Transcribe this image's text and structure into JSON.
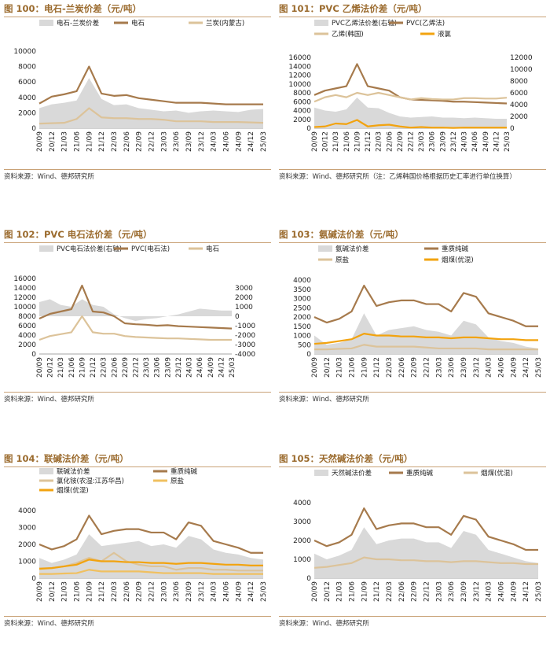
{
  "colors": {
    "gray": "#d9d9d9",
    "brown": "#a67a4c",
    "tan": "#dcc39a",
    "orange": "#f2a30f",
    "title": "#9b6b2e"
  },
  "xticks": [
    "20/09",
    "20/12",
    "21/03",
    "21/06",
    "21/09",
    "21/12",
    "22/03",
    "22/06",
    "22/09",
    "22/12",
    "23/03",
    "23/06",
    "23/09",
    "23/12",
    "24/03",
    "24/06",
    "24/09",
    "24/12",
    "25/03"
  ],
  "panels": [
    {
      "id": "p100",
      "title": "图 100：电石-兰炭价差（元/吨）",
      "source": "资料来源：Wind、德邦研究所",
      "chart_data": {
        "type": "area+line",
        "title": "电石-兰炭价差（元/吨）",
        "ylim": [
          0,
          10000
        ],
        "yticks": [
          "0",
          "2000",
          "4000",
          "6000",
          "8000",
          "10000"
        ],
        "series": [
          {
            "name": "电石-兰炭价差",
            "kind": "area",
            "axis": "left",
            "color": "gray",
            "values": [
              2600,
              3100,
              3300,
              3600,
              6500,
              3800,
              3000,
              3100,
              2600,
              2400,
              2200,
              2300,
              2000,
              2200,
              2300,
              2200,
              2100,
              2400,
              2500
            ]
          },
          {
            "name": "电石",
            "kind": "line",
            "axis": "left",
            "color": "brown",
            "values": [
              3200,
              4100,
              4400,
              4800,
              8000,
              4500,
              4200,
              4300,
              3900,
              3700,
              3500,
              3300,
              3300,
              3300,
              3200,
              3100,
              3100,
              3100,
              3100
            ]
          },
          {
            "name": "兰炭(内蒙古)",
            "kind": "line",
            "axis": "left",
            "color": "tan",
            "values": [
              600,
              650,
              700,
              1200,
              2600,
              1400,
              1300,
              1300,
              1200,
              1200,
              1100,
              900,
              900,
              900,
              800,
              800,
              800,
              750,
              700
            ]
          }
        ]
      }
    },
    {
      "id": "p101",
      "title": "图 101：PVC 乙烯法价差（元/吨）",
      "source": "资料来源：Wind、德邦研究所（注：乙烯韩国价格根据历史汇率进行单位换算）",
      "chart_data": {
        "type": "area+line",
        "title": "PVC 乙烯法价差（元/吨）",
        "ylim": [
          0,
          16000
        ],
        "yticks": [
          "0",
          "2000",
          "4000",
          "6000",
          "8000",
          "10000",
          "12000",
          "14000",
          "16000"
        ],
        "y2lim": [
          0,
          12000
        ],
        "y2ticks": [
          "0",
          "2000",
          "4000",
          "6000",
          "8000",
          "10000",
          "12000"
        ],
        "series": [
          {
            "name": "PVC乙烯法价差(右轴)",
            "kind": "area",
            "axis": "right",
            "color": "gray",
            "values": [
              3500,
              3000,
              2800,
              3200,
              5200,
              3500,
              3400,
              2600,
              2000,
              1800,
              1900,
              2000,
              1800,
              1800,
              1700,
              1800,
              1700,
              1600,
              1600
            ]
          },
          {
            "name": "PVC(乙烯法)",
            "kind": "line",
            "axis": "left",
            "color": "brown",
            "values": [
              7500,
              8500,
              9000,
              9500,
              14500,
              9500,
              9000,
              8500,
              7000,
              6500,
              6400,
              6300,
              6200,
              6000,
              6000,
              5900,
              5800,
              5700,
              5600
            ]
          },
          {
            "name": "乙烯(韩国)",
            "kind": "line",
            "axis": "left",
            "color": "tan",
            "values": [
              6000,
              7000,
              7500,
              7000,
              8000,
              7500,
              8000,
              7500,
              7000,
              6500,
              6800,
              6600,
              6500,
              6500,
              6800,
              6800,
              6700,
              6700,
              6900
            ]
          },
          {
            "name": "液氯",
            "kind": "line",
            "axis": "right",
            "color": "orange",
            "values": [
              200,
              300,
              800,
              700,
              1400,
              300,
              500,
              600,
              300,
              100,
              200,
              100,
              100,
              50,
              100,
              100,
              100,
              100,
              100
            ]
          }
        ]
      }
    },
    {
      "id": "p102",
      "title": "图 102：PVC 电石法价差（元/吨）",
      "source": "资料来源：Wind、德邦研究所",
      "chart_data": {
        "type": "area+line",
        "title": "PVC 电石法价差（元/吨）",
        "ylim": [
          0,
          16000
        ],
        "yticks": [
          "0",
          "2000",
          "4000",
          "6000",
          "8000",
          "10000",
          "12000",
          "14000",
          "16000"
        ],
        "y2lim": [
          -4000,
          4000
        ],
        "y2ticks": [
          "-4000",
          "-3000",
          "-2000",
          "-1000",
          "0",
          "1000",
          "2000",
          "3000"
        ],
        "series": [
          {
            "name": "PVC电石法价差(右轴)",
            "kind": "area",
            "axis": "right",
            "color": "gray",
            "values": [
              1500,
              1800,
              1200,
              1000,
              1800,
              1200,
              1000,
              200,
              -200,
              -500,
              -300,
              -200,
              0,
              200,
              500,
              800,
              700,
              600,
              600
            ]
          },
          {
            "name": "PVC(电石法)",
            "kind": "line",
            "axis": "left",
            "color": "brown",
            "values": [
              7500,
              8500,
              9000,
              9500,
              14500,
              9000,
              8800,
              8000,
              6500,
              6300,
              6200,
              6000,
              6100,
              5900,
              5800,
              5700,
              5600,
              5500,
              5400
            ]
          },
          {
            "name": "电石",
            "kind": "line",
            "axis": "left",
            "color": "tan",
            "values": [
              3000,
              3800,
              4200,
              4600,
              8000,
              4600,
              4300,
              4300,
              3800,
              3600,
              3500,
              3400,
              3300,
              3300,
              3200,
              3100,
              3000,
              3000,
              3000
            ]
          }
        ]
      }
    },
    {
      "id": "p103",
      "title": "图 103：氨碱法价差（元/吨）",
      "source": "资料来源：Wind、德邦研究所",
      "chart_data": {
        "type": "area+line",
        "title": "氨碱法价差（元/吨）",
        "ylim": [
          0,
          4000
        ],
        "yticks": [
          "0",
          "500",
          "1000",
          "1500",
          "2000",
          "2500",
          "3000",
          "3500",
          "4000"
        ],
        "series": [
          {
            "name": "氨碱法价差",
            "kind": "area",
            "axis": "left",
            "color": "gray",
            "values": [
              1000,
              500,
              600,
              800,
              2200,
              1000,
              1300,
              1400,
              1500,
              1300,
              1200,
              1000,
              1800,
              1600,
              900,
              700,
              600,
              400,
              300
            ]
          },
          {
            "name": "重质纯碱",
            "kind": "line",
            "axis": "left",
            "color": "brown",
            "values": [
              2000,
              1700,
              1900,
              2300,
              3700,
              2600,
              2800,
              2900,
              2900,
              2700,
              2700,
              2300,
              3300,
              3100,
              2200,
              2000,
              1800,
              1500,
              1500
            ]
          },
          {
            "name": "原盐",
            "kind": "line",
            "axis": "left",
            "color": "tan",
            "values": [
              250,
              250,
              280,
              300,
              500,
              400,
              400,
              400,
              400,
              350,
              300,
              300,
              300,
              300,
              250,
              250,
              250,
              250,
              250
            ]
          },
          {
            "name": "烟煤(优混)",
            "kind": "line",
            "axis": "left",
            "color": "orange",
            "values": [
              550,
              600,
              700,
              800,
              1100,
              1000,
              1000,
              950,
              950,
              900,
              900,
              850,
              900,
              900,
              850,
              800,
              800,
              750,
              750
            ]
          }
        ]
      }
    },
    {
      "id": "p104",
      "title": "图 104：联碱法价差（元/吨）",
      "source": "资料来源：Wind、德邦研究所",
      "chart_data": {
        "type": "area+line",
        "title": "联碱法价差（元/吨）",
        "ylim": [
          0,
          4000
        ],
        "yticks": [
          "0",
          "1000",
          "2000",
          "3000",
          "4000"
        ],
        "series": [
          {
            "name": "联碱法价差",
            "kind": "area",
            "axis": "left",
            "color": "gray",
            "values": [
              1200,
              900,
              1100,
              1400,
              2600,
              1900,
              2000,
              2100,
              2200,
              1900,
              2000,
              1800,
              2500,
              2300,
              1700,
              1500,
              1400,
              1200,
              1100
            ]
          },
          {
            "name": "重质纯碱",
            "kind": "line",
            "axis": "left",
            "color": "brown",
            "values": [
              2000,
              1700,
              1900,
              2300,
              3700,
              2600,
              2800,
              2900,
              2900,
              2700,
              2700,
              2300,
              3300,
              3100,
              2200,
              2000,
              1800,
              1500,
              1500
            ]
          },
          {
            "name": "氯化铵(农湿:江苏华昌)",
            "kind": "line",
            "axis": "left",
            "color": "tan",
            "values": [
              600,
              600,
              700,
              900,
              1200,
              1000,
              1500,
              1000,
              800,
              700,
              700,
              500,
              600,
              600,
              500,
              500,
              450,
              450,
              450
            ]
          },
          {
            "name": "原盐",
            "kind": "line",
            "axis": "left",
            "color": "tan2",
            "values": [
              250,
              250,
              280,
              300,
              500,
              400,
              400,
              400,
              400,
              350,
              300,
              300,
              300,
              300,
              250,
              250,
              250,
              250,
              250
            ]
          },
          {
            "name": "烟煤(优混)",
            "kind": "line",
            "axis": "left",
            "color": "orange",
            "values": [
              550,
              600,
              700,
              800,
              1100,
              1000,
              1000,
              950,
              950,
              900,
              900,
              850,
              900,
              900,
              850,
              800,
              800,
              750,
              750
            ]
          }
        ]
      }
    },
    {
      "id": "p105",
      "title": "图 105：天然碱法价差（元/吨）",
      "source": "资料来源：Wind、德邦研究所",
      "chart_data": {
        "type": "area+line",
        "title": "天然碱法价差（元/吨）",
        "ylim": [
          0,
          4000
        ],
        "yticks": [
          "0",
          "1000",
          "2000",
          "3000",
          "4000"
        ],
        "series": [
          {
            "name": "天然碱法价差",
            "kind": "area",
            "axis": "left",
            "color": "gray",
            "values": [
              1300,
              1000,
              1200,
              1500,
              2700,
              1800,
              2000,
              2100,
              2100,
              1900,
              1900,
              1600,
              2500,
              2300,
              1500,
              1300,
              1100,
              900,
              800
            ]
          },
          {
            "name": "重质纯碱",
            "kind": "line",
            "axis": "left",
            "color": "brown",
            "values": [
              2000,
              1700,
              1900,
              2300,
              3700,
              2600,
              2800,
              2900,
              2900,
              2700,
              2700,
              2300,
              3300,
              3100,
              2200,
              2000,
              1800,
              1500,
              1500
            ]
          },
          {
            "name": "烟煤(优混)",
            "kind": "line",
            "axis": "left",
            "color": "tan",
            "values": [
              550,
              600,
              700,
              800,
              1100,
              1000,
              1000,
              950,
              950,
              900,
              900,
              850,
              900,
              900,
              850,
              800,
              800,
              750,
              750
            ]
          }
        ]
      }
    }
  ]
}
